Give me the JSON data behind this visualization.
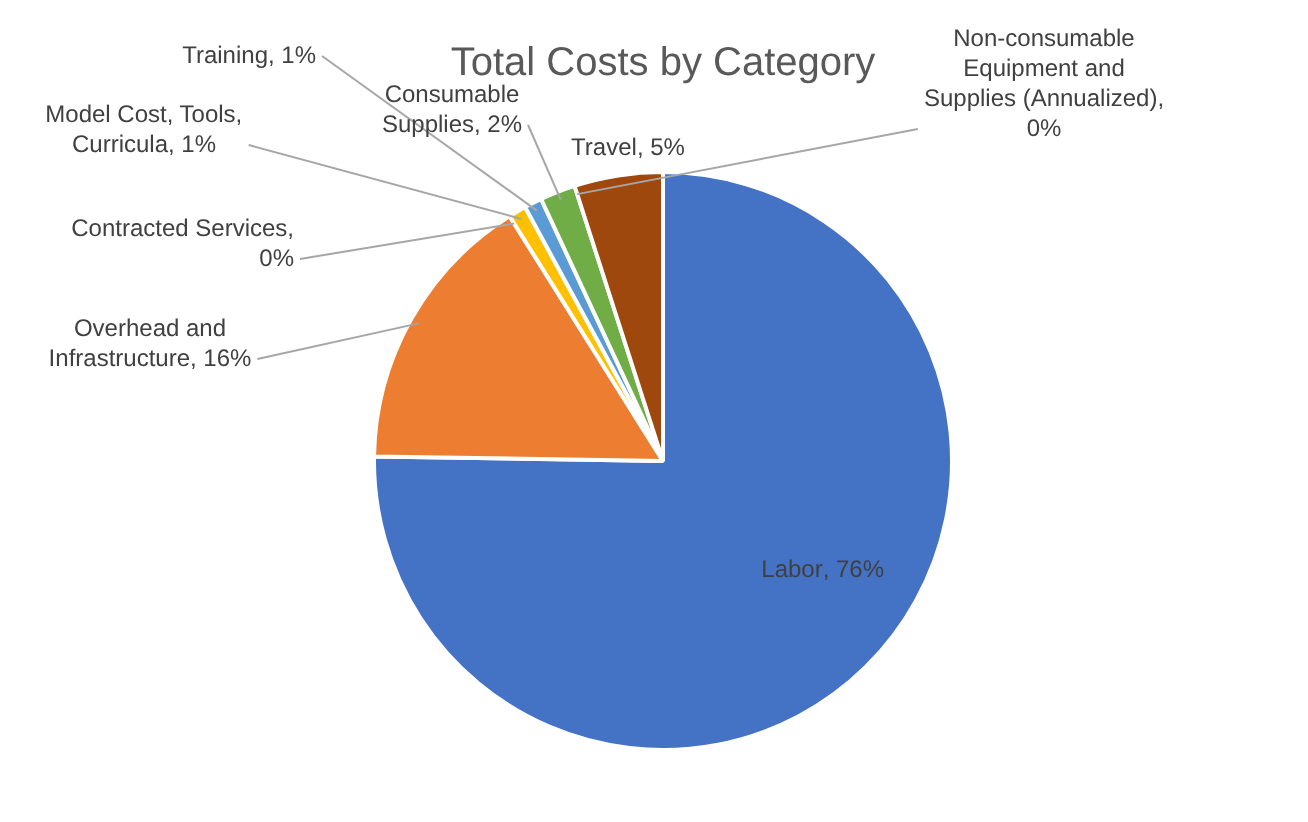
{
  "chart_data": {
    "type": "pie",
    "title": "Total Costs by Category",
    "categories": [
      "Labor",
      "Overhead and Infrastructure",
      "Contracted Services",
      "Model Cost, Tools, Curricula",
      "Training",
      "Consumable Supplies",
      "Non-consumable Equipment and Supplies (Annualized)",
      "Travel"
    ],
    "values": [
      76,
      16,
      0,
      1,
      1,
      2,
      0,
      5
    ],
    "colors": [
      "#4472c4",
      "#ed7d31",
      "#a5a5a5",
      "#ffc000",
      "#5b9bd5",
      "#70ad47",
      "#264478",
      "#9e480e"
    ],
    "value_labels": [
      ", 76%",
      ", 16%",
      ", 0%",
      ", 1%",
      ", 1%",
      ", 2%",
      ", 0%",
      ", 5%"
    ],
    "legend": false
  }
}
